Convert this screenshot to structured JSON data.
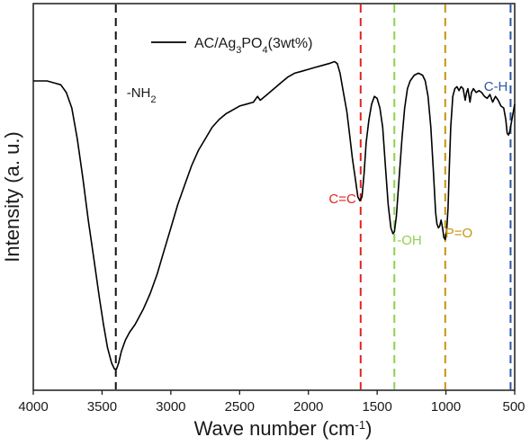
{
  "chart_data": {
    "type": "line",
    "title": "",
    "xlabel": "Wave number (cm",
    "xlabel_sup": "-1",
    "xlabel_tail": ")",
    "ylabel": "Intensity (a. u.)",
    "xlim": [
      4000,
      500
    ],
    "ylim": [
      0,
      1
    ],
    "x_reversed": true,
    "y_ticks_shown": false,
    "grid": false,
    "legend_position": "top-center",
    "x_ticks": [
      4000,
      3500,
      3000,
      2500,
      2000,
      1500,
      1000,
      500
    ],
    "x_tick_labels": [
      "4000",
      "3500",
      "3000",
      "2500",
      "2000",
      "1500",
      "1000",
      "500"
    ],
    "series": [
      {
        "name": "AC/Ag3PO4(3wt%)",
        "color": "#000000",
        "points": [
          [
            4000,
            0.8
          ],
          [
            3900,
            0.8
          ],
          [
            3850,
            0.795
          ],
          [
            3800,
            0.79
          ],
          [
            3760,
            0.77
          ],
          [
            3720,
            0.73
          ],
          [
            3680,
            0.65
          ],
          [
            3640,
            0.55
          ],
          [
            3600,
            0.44
          ],
          [
            3560,
            0.34
          ],
          [
            3520,
            0.24
          ],
          [
            3490,
            0.17
          ],
          [
            3460,
            0.11
          ],
          [
            3430,
            0.07
          ],
          [
            3410,
            0.055
          ],
          [
            3395,
            0.055
          ],
          [
            3380,
            0.07
          ],
          [
            3360,
            0.1
          ],
          [
            3330,
            0.13
          ],
          [
            3300,
            0.15
          ],
          [
            3260,
            0.17
          ],
          [
            3200,
            0.21
          ],
          [
            3150,
            0.25
          ],
          [
            3100,
            0.3
          ],
          [
            3050,
            0.36
          ],
          [
            3000,
            0.42
          ],
          [
            2950,
            0.48
          ],
          [
            2900,
            0.53
          ],
          [
            2850,
            0.58
          ],
          [
            2800,
            0.62
          ],
          [
            2750,
            0.65
          ],
          [
            2700,
            0.68
          ],
          [
            2650,
            0.7
          ],
          [
            2600,
            0.715
          ],
          [
            2550,
            0.725
          ],
          [
            2500,
            0.735
          ],
          [
            2450,
            0.74
          ],
          [
            2400,
            0.745
          ],
          [
            2370,
            0.76
          ],
          [
            2350,
            0.75
          ],
          [
            2300,
            0.765
          ],
          [
            2250,
            0.78
          ],
          [
            2200,
            0.795
          ],
          [
            2150,
            0.81
          ],
          [
            2100,
            0.82
          ],
          [
            2050,
            0.825
          ],
          [
            2000,
            0.83
          ],
          [
            1950,
            0.835
          ],
          [
            1900,
            0.84
          ],
          [
            1850,
            0.845
          ],
          [
            1810,
            0.85
          ],
          [
            1790,
            0.845
          ],
          [
            1770,
            0.82
          ],
          [
            1750,
            0.78
          ],
          [
            1720,
            0.72
          ],
          [
            1700,
            0.66
          ],
          [
            1680,
            0.6
          ],
          [
            1660,
            0.55
          ],
          [
            1640,
            0.5
          ],
          [
            1625,
            0.49
          ],
          [
            1610,
            0.5
          ],
          [
            1595,
            0.56
          ],
          [
            1580,
            0.64
          ],
          [
            1560,
            0.7
          ],
          [
            1540,
            0.74
          ],
          [
            1520,
            0.76
          ],
          [
            1500,
            0.755
          ],
          [
            1480,
            0.73
          ],
          [
            1460,
            0.68
          ],
          [
            1440,
            0.58
          ],
          [
            1420,
            0.48
          ],
          [
            1400,
            0.42
          ],
          [
            1385,
            0.405
          ],
          [
            1375,
            0.41
          ],
          [
            1360,
            0.45
          ],
          [
            1340,
            0.55
          ],
          [
            1320,
            0.65
          ],
          [
            1300,
            0.73
          ],
          [
            1280,
            0.78
          ],
          [
            1260,
            0.8
          ],
          [
            1230,
            0.815
          ],
          [
            1200,
            0.82
          ],
          [
            1170,
            0.815
          ],
          [
            1150,
            0.8
          ],
          [
            1130,
            0.76
          ],
          [
            1110,
            0.68
          ],
          [
            1090,
            0.56
          ],
          [
            1075,
            0.46
          ],
          [
            1065,
            0.43
          ],
          [
            1055,
            0.42
          ],
          [
            1045,
            0.425
          ],
          [
            1035,
            0.44
          ],
          [
            1025,
            0.42
          ],
          [
            1015,
            0.395
          ],
          [
            1005,
            0.39
          ],
          [
            995,
            0.41
          ],
          [
            985,
            0.47
          ],
          [
            975,
            0.58
          ],
          [
            965,
            0.68
          ],
          [
            950,
            0.76
          ],
          [
            935,
            0.78
          ],
          [
            920,
            0.785
          ],
          [
            905,
            0.775
          ],
          [
            890,
            0.785
          ],
          [
            875,
            0.78
          ],
          [
            860,
            0.75
          ],
          [
            850,
            0.77
          ],
          [
            840,
            0.78
          ],
          [
            825,
            0.745
          ],
          [
            815,
            0.77
          ],
          [
            800,
            0.78
          ],
          [
            780,
            0.77
          ],
          [
            760,
            0.775
          ],
          [
            740,
            0.77
          ],
          [
            720,
            0.76
          ],
          [
            700,
            0.755
          ],
          [
            680,
            0.765
          ],
          [
            660,
            0.745
          ],
          [
            640,
            0.76
          ],
          [
            620,
            0.75
          ],
          [
            600,
            0.735
          ],
          [
            580,
            0.73
          ],
          [
            565,
            0.7
          ],
          [
            555,
            0.665
          ],
          [
            545,
            0.66
          ],
          [
            535,
            0.67
          ],
          [
            520,
            0.7
          ],
          [
            505,
            0.73
          ],
          [
            500,
            0.74
          ]
        ]
      }
    ],
    "reference_lines": [
      {
        "x": 3400,
        "color": "#111111",
        "label_main": "-NH",
        "label_sub": "2"
      },
      {
        "x": 1620,
        "color": "#e2241f",
        "label_main": "C=C",
        "label_sub": ""
      },
      {
        "x": 1375,
        "color": "#8fd14f",
        "label_main": "-OH",
        "label_sub": ""
      },
      {
        "x": 1005,
        "color": "#c7950f",
        "label_main": "P=O",
        "label_sub": ""
      },
      {
        "x": 530,
        "color": "#2c57a0",
        "label_main": "C-H",
        "label_sub": ""
      }
    ],
    "legend": {
      "prefix": "AC/Ag",
      "sub1": "3",
      "mid": "PO",
      "sub2": "4",
      "suffix": "(3wt%)"
    }
  }
}
